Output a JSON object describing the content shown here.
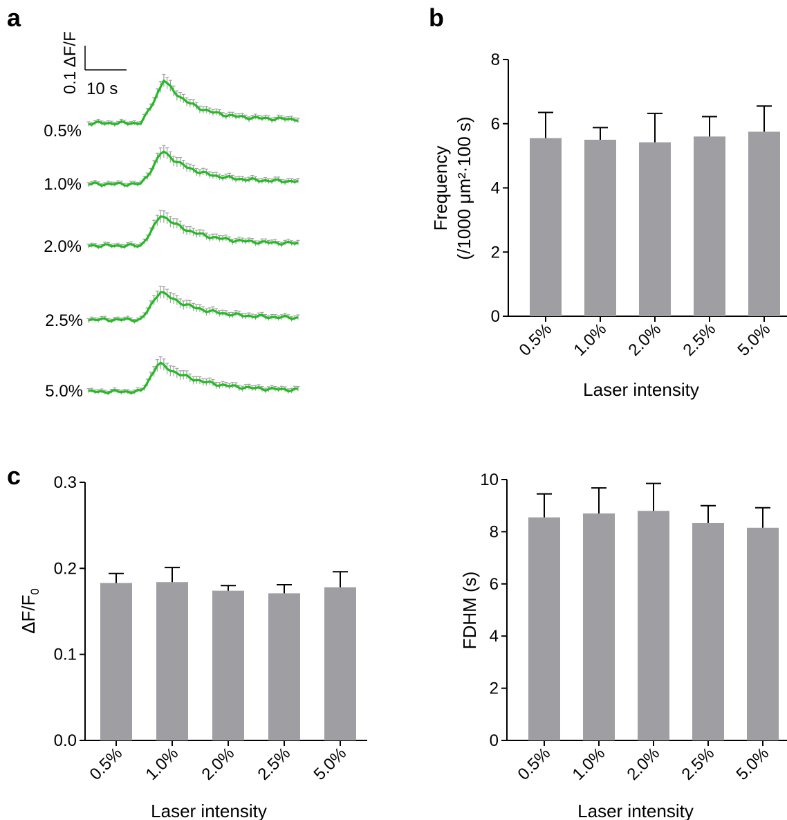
{
  "colors": {
    "trace": "#22bb22",
    "error_bar_trace": "#a0a0a0",
    "bar_fill": "#9e9ea3",
    "axis": "#000000"
  },
  "panel_a": {
    "letter": "a",
    "scale_bar": {
      "y_label": "0.1 ΔF/F",
      "x_label": "10 s"
    },
    "traces": [
      {
        "label": "0.5%",
        "peak_dff": 0.18
      },
      {
        "label": "1.0%",
        "peak_dff": 0.14
      },
      {
        "label": "2.0%",
        "peak_dff": 0.13
      },
      {
        "label": "2.5%",
        "peak_dff": 0.12
      },
      {
        "label": "5.0%",
        "peak_dff": 0.12
      }
    ]
  },
  "panel_b": {
    "letter": "b"
  },
  "panel_c": {
    "letter": "c"
  },
  "chart_data": [
    {
      "id": "frequency",
      "type": "bar",
      "categories": [
        "0.5%",
        "1.0%",
        "2.0%",
        "2.5%",
        "5.0%"
      ],
      "values": [
        5.55,
        5.5,
        5.42,
        5.6,
        5.75
      ],
      "errors": [
        0.8,
        0.38,
        0.9,
        0.62,
        0.8
      ],
      "xlabel": "Laser intensity",
      "ylabel_line1": "Frequency",
      "ylabel_line2": "(/1000 μm²·100 s)",
      "ylim": [
        0,
        8
      ],
      "yticks": [
        "0",
        "2",
        "4",
        "6",
        "8"
      ],
      "grid": false
    },
    {
      "id": "dff",
      "type": "bar",
      "categories": [
        "0.5%",
        "1.0%",
        "2.0%",
        "2.5%",
        "5.0%"
      ],
      "values": [
        0.183,
        0.184,
        0.174,
        0.171,
        0.178
      ],
      "errors": [
        0.011,
        0.017,
        0.006,
        0.01,
        0.018
      ],
      "xlabel": "Laser intensity",
      "ylabel": "ΔF/F0",
      "ylim": [
        0,
        0.3
      ],
      "yticks": [
        "0.0",
        "0.1",
        "0.2",
        "0.3"
      ],
      "grid": false
    },
    {
      "id": "fdhm",
      "type": "bar",
      "categories": [
        "0.5%",
        "1.0%",
        "2.0%",
        "2.5%",
        "5.0%"
      ],
      "values": [
        8.55,
        8.7,
        8.8,
        8.33,
        8.15
      ],
      "errors": [
        0.9,
        0.98,
        1.05,
        0.67,
        0.77
      ],
      "xlabel": "Laser intensity",
      "ylabel": "FDHM (s)",
      "ylim": [
        0,
        10
      ],
      "yticks": [
        "0",
        "2",
        "4",
        "6",
        "8",
        "10"
      ],
      "grid": false
    }
  ]
}
